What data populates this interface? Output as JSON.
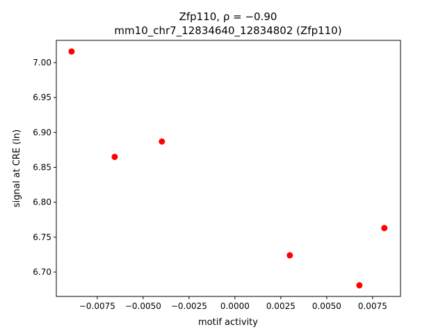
{
  "chart_data": {
    "type": "scatter",
    "title": "Zfp110, ρ = −0.90",
    "subtitle": "mm10_chr7_12834640_12834802 (Zfp110)",
    "x_label": "motif activity",
    "y_label": "signal at CRE (ln)",
    "color": "#ff0000",
    "x": [
      -0.0089,
      -0.00655,
      -0.00398,
      0.00299,
      0.00678,
      0.00814
    ],
    "values": [
      7.016,
      6.865,
      6.887,
      6.724,
      6.681,
      6.763
    ],
    "xlim": [
      -0.00973,
      0.00902
    ],
    "ylim": [
      6.6651,
      7.0319
    ],
    "xticks": [
      {
        "value": -0.0075,
        "label": "−0.0075"
      },
      {
        "value": -0.005,
        "label": "−0.0050"
      },
      {
        "value": -0.0025,
        "label": "−0.0025"
      },
      {
        "value": 0,
        "label": "0.0000"
      },
      {
        "value": 0.0025,
        "label": "0.0025"
      },
      {
        "value": 0.005,
        "label": "0.0050"
      },
      {
        "value": 0.0075,
        "label": "0.0075"
      }
    ],
    "yticks": [
      {
        "value": 6.7,
        "label": "6.70"
      },
      {
        "value": 6.75,
        "label": "6.75"
      },
      {
        "value": 6.8,
        "label": "6.80"
      },
      {
        "value": 6.85,
        "label": "6.85"
      },
      {
        "value": 6.9,
        "label": "6.90"
      },
      {
        "value": 6.95,
        "label": "6.95"
      },
      {
        "value": 7.0,
        "label": "7.00"
      }
    ]
  }
}
